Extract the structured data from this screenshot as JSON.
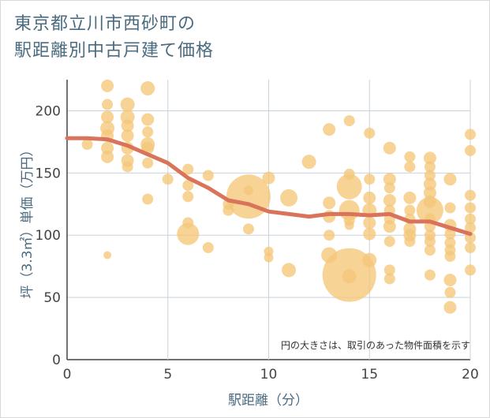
{
  "title_lines": [
    "東京都立川市西砂町の",
    "駅距離別中古戸建て価格"
  ],
  "note": "円の大きさは、取引のあった物件面積を示す",
  "colors": {
    "bubble": "#f5c779",
    "line": "#d9735a",
    "title": "#4a6b80"
  },
  "chart_data": {
    "type": "scatter",
    "xlabel": "駅距離（分）",
    "ylabel": "坪（3.3㎡）単価（万円）",
    "xlim": [
      0,
      20
    ],
    "ylim": [
      0,
      225
    ],
    "xticks": [
      0,
      5,
      10,
      15,
      20
    ],
    "yticks": [
      0,
      50,
      100,
      150,
      200
    ],
    "grid": true,
    "points": [
      {
        "x": 1,
        "y": 173,
        "s": 7
      },
      {
        "x": 2,
        "y": 220,
        "s": 8
      },
      {
        "x": 2,
        "y": 205,
        "s": 7
      },
      {
        "x": 2,
        "y": 195,
        "s": 8
      },
      {
        "x": 2,
        "y": 186,
        "s": 9
      },
      {
        "x": 2,
        "y": 180,
        "s": 8
      },
      {
        "x": 2,
        "y": 170,
        "s": 8
      },
      {
        "x": 2,
        "y": 163,
        "s": 8
      },
      {
        "x": 2,
        "y": 84,
        "s": 5
      },
      {
        "x": 3,
        "y": 205,
        "s": 9
      },
      {
        "x": 3,
        "y": 195,
        "s": 9
      },
      {
        "x": 3,
        "y": 188,
        "s": 8
      },
      {
        "x": 3,
        "y": 180,
        "s": 8
      },
      {
        "x": 3,
        "y": 170,
        "s": 8
      },
      {
        "x": 3,
        "y": 160,
        "s": 8
      },
      {
        "x": 3,
        "y": 155,
        "s": 7
      },
      {
        "x": 4,
        "y": 218,
        "s": 9
      },
      {
        "x": 4,
        "y": 193,
        "s": 8
      },
      {
        "x": 4,
        "y": 183,
        "s": 7
      },
      {
        "x": 4,
        "y": 173,
        "s": 9
      },
      {
        "x": 4,
        "y": 170,
        "s": 8
      },
      {
        "x": 4,
        "y": 158,
        "s": 7
      },
      {
        "x": 4,
        "y": 129,
        "s": 7
      },
      {
        "x": 5,
        "y": 145,
        "s": 7
      },
      {
        "x": 6,
        "y": 153,
        "s": 7
      },
      {
        "x": 6,
        "y": 140,
        "s": 7
      },
      {
        "x": 6,
        "y": 131,
        "s": 7
      },
      {
        "x": 6,
        "y": 110,
        "s": 7
      },
      {
        "x": 6,
        "y": 101,
        "s": 14
      },
      {
        "x": 7,
        "y": 148,
        "s": 7
      },
      {
        "x": 7,
        "y": 90,
        "s": 7
      },
      {
        "x": 8,
        "y": 125,
        "s": 7
      },
      {
        "x": 8,
        "y": 120,
        "s": 7
      },
      {
        "x": 9,
        "y": 131,
        "s": 28
      },
      {
        "x": 9,
        "y": 136,
        "s": 6
      },
      {
        "x": 9,
        "y": 105,
        "s": 7
      },
      {
        "x": 10,
        "y": 146,
        "s": 8
      },
      {
        "x": 10,
        "y": 87,
        "s": 6
      },
      {
        "x": 10,
        "y": 82,
        "s": 6
      },
      {
        "x": 11,
        "y": 130,
        "s": 11
      },
      {
        "x": 11,
        "y": 72,
        "s": 9
      },
      {
        "x": 12,
        "y": 159,
        "s": 9
      },
      {
        "x": 13,
        "y": 185,
        "s": 8
      },
      {
        "x": 13,
        "y": 126,
        "s": 8
      },
      {
        "x": 13,
        "y": 115,
        "s": 8
      },
      {
        "x": 13,
        "y": 100,
        "s": 7
      },
      {
        "x": 13,
        "y": 84,
        "s": 10
      },
      {
        "x": 14,
        "y": 192,
        "s": 7
      },
      {
        "x": 14,
        "y": 149,
        "s": 7
      },
      {
        "x": 14,
        "y": 139,
        "s": 16
      },
      {
        "x": 14,
        "y": 120,
        "s": 13
      },
      {
        "x": 14,
        "y": 112,
        "s": 7
      },
      {
        "x": 14,
        "y": 108,
        "s": 6
      },
      {
        "x": 14,
        "y": 68,
        "s": 34
      },
      {
        "x": 14,
        "y": 67,
        "s": 9
      },
      {
        "x": 15,
        "y": 182,
        "s": 7
      },
      {
        "x": 15,
        "y": 145,
        "s": 7
      },
      {
        "x": 15,
        "y": 130,
        "s": 8
      },
      {
        "x": 15,
        "y": 120,
        "s": 9
      },
      {
        "x": 15,
        "y": 110,
        "s": 8
      },
      {
        "x": 15,
        "y": 101,
        "s": 8
      },
      {
        "x": 15,
        "y": 80,
        "s": 9
      },
      {
        "x": 16,
        "y": 170,
        "s": 8
      },
      {
        "x": 16,
        "y": 145,
        "s": 8
      },
      {
        "x": 16,
        "y": 138,
        "s": 7
      },
      {
        "x": 16,
        "y": 128,
        "s": 8
      },
      {
        "x": 16,
        "y": 120,
        "s": 7
      },
      {
        "x": 16,
        "y": 113,
        "s": 7
      },
      {
        "x": 16,
        "y": 107,
        "s": 8
      },
      {
        "x": 16,
        "y": 95,
        "s": 7
      },
      {
        "x": 16,
        "y": 72,
        "s": 7
      },
      {
        "x": 16,
        "y": 65,
        "s": 7
      },
      {
        "x": 17,
        "y": 163,
        "s": 7
      },
      {
        "x": 17,
        "y": 155,
        "s": 7
      },
      {
        "x": 17,
        "y": 130,
        "s": 8
      },
      {
        "x": 17,
        "y": 120,
        "s": 7
      },
      {
        "x": 17,
        "y": 113,
        "s": 7
      },
      {
        "x": 17,
        "y": 105,
        "s": 8
      },
      {
        "x": 17,
        "y": 100,
        "s": 8
      },
      {
        "x": 17,
        "y": 95,
        "s": 7
      },
      {
        "x": 18,
        "y": 162,
        "s": 8
      },
      {
        "x": 18,
        "y": 155,
        "s": 7
      },
      {
        "x": 18,
        "y": 148,
        "s": 7
      },
      {
        "x": 18,
        "y": 141,
        "s": 8
      },
      {
        "x": 18,
        "y": 134,
        "s": 8
      },
      {
        "x": 18,
        "y": 127,
        "s": 8
      },
      {
        "x": 18,
        "y": 120,
        "s": 17
      },
      {
        "x": 18,
        "y": 113,
        "s": 7
      },
      {
        "x": 18,
        "y": 107,
        "s": 7
      },
      {
        "x": 18,
        "y": 100,
        "s": 7
      },
      {
        "x": 18,
        "y": 95,
        "s": 7
      },
      {
        "x": 18,
        "y": 88,
        "s": 7
      },
      {
        "x": 18,
        "y": 68,
        "s": 7
      },
      {
        "x": 19,
        "y": 145,
        "s": 8
      },
      {
        "x": 19,
        "y": 122,
        "s": 7
      },
      {
        "x": 19,
        "y": 108,
        "s": 8
      },
      {
        "x": 19,
        "y": 101,
        "s": 7
      },
      {
        "x": 19,
        "y": 94,
        "s": 7
      },
      {
        "x": 19,
        "y": 88,
        "s": 7
      },
      {
        "x": 19,
        "y": 83,
        "s": 7
      },
      {
        "x": 19,
        "y": 64,
        "s": 8
      },
      {
        "x": 19,
        "y": 54,
        "s": 7
      },
      {
        "x": 19,
        "y": 42,
        "s": 8
      },
      {
        "x": 20,
        "y": 181,
        "s": 7
      },
      {
        "x": 20,
        "y": 168,
        "s": 7
      },
      {
        "x": 20,
        "y": 132,
        "s": 7
      },
      {
        "x": 20,
        "y": 122,
        "s": 7
      },
      {
        "x": 20,
        "y": 113,
        "s": 7
      },
      {
        "x": 20,
        "y": 106,
        "s": 7
      },
      {
        "x": 20,
        "y": 98,
        "s": 7
      },
      {
        "x": 20,
        "y": 90,
        "s": 7
      },
      {
        "x": 20,
        "y": 72,
        "s": 7
      }
    ],
    "trend": {
      "x": [
        0,
        1,
        2,
        3,
        4,
        5,
        6,
        7,
        8,
        9,
        10,
        11,
        12,
        13,
        14,
        15,
        16,
        17,
        18,
        19,
        20
      ],
      "y": [
        178,
        178,
        177,
        172,
        165,
        158,
        146,
        138,
        128,
        125,
        119,
        117,
        115,
        117,
        117,
        116,
        117,
        111,
        111,
        106,
        101
      ]
    }
  }
}
